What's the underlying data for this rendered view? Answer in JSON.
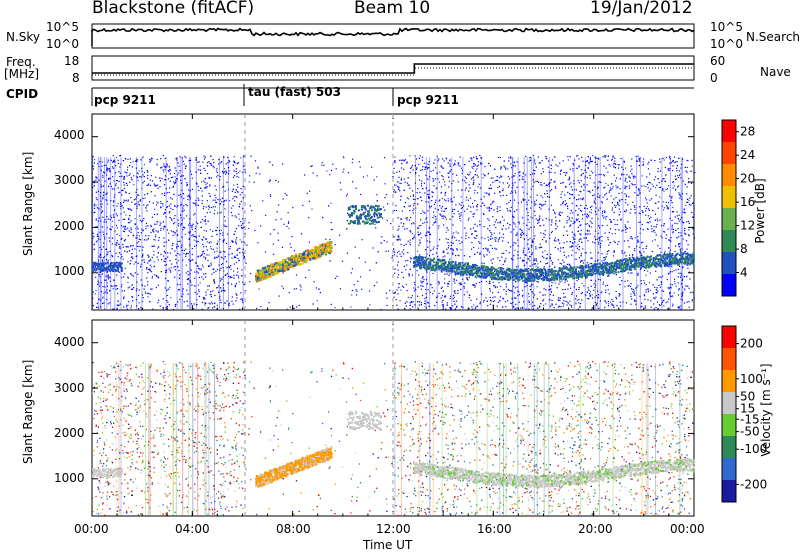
{
  "header": {
    "station": "Blackstone (fitACF)",
    "beam": "Beam 10",
    "date": "19/Jan/2012"
  },
  "noise_panel": {
    "left_label": "N.Sky",
    "left_ticks": [
      "10^5",
      "10^0"
    ],
    "right_ticks": [
      "10^5",
      "10^0"
    ],
    "right_label": "N.Search"
  },
  "freq_panel": {
    "left_label_1": "Freq.",
    "left_label_2": "[MHz]",
    "left_ticks": [
      "18",
      "8"
    ],
    "right_ticks": [
      "60",
      "0"
    ],
    "right_label": "Nave"
  },
  "cpid": {
    "label": "CPID",
    "segments": [
      {
        "name": "pcp 9211",
        "start_hour": 0,
        "end_hour": 6.1
      },
      {
        "name": "tau (fast) 503",
        "start_hour": 6.1,
        "end_hour": 12.0
      },
      {
        "name": "pcp 9211",
        "start_hour": 12.0,
        "end_hour": 24
      }
    ]
  },
  "chart_data": [
    {
      "type": "heatmap",
      "title": "",
      "ylabel": "Slant Range [km]",
      "xlabel": "",
      "xlim": [
        0,
        24
      ],
      "ylim": [
        180,
        4500
      ],
      "yticks": [
        "4000",
        "3000",
        "2000",
        "1000"
      ],
      "ytick_values": [
        4000,
        3000,
        2000,
        1000
      ],
      "colorbar": {
        "label": "Power [dB]",
        "ticks": [
          "28",
          "24",
          "20",
          "16",
          "12",
          "8",
          "4"
        ],
        "tick_values": [
          28,
          24,
          20,
          16,
          12,
          8,
          4
        ],
        "range": [
          0,
          30
        ],
        "colors": [
          "#0000ff",
          "#1f4fc0",
          "#2e8b57",
          "#6ab04c",
          "#f0c000",
          "#ff8c00",
          "#ff4500",
          "#ff0000"
        ]
      },
      "features": [
        {
          "name": "ground scatter band",
          "hours": [
            0,
            24
          ],
          "range_km": [
            950,
            1500
          ]
        },
        {
          "name": "strong echo",
          "hours": [
            6.5,
            9.5
          ],
          "range_km": [
            900,
            1600
          ]
        },
        {
          "name": "patch",
          "hours": [
            10.2,
            11.5
          ],
          "range_km": [
            2100,
            2500
          ]
        }
      ]
    },
    {
      "type": "heatmap",
      "title": "",
      "ylabel": "Slant Range [km]",
      "xlabel": "Time UT",
      "xlim": [
        0,
        24
      ],
      "ylim": [
        180,
        4500
      ],
      "yticks": [
        "4000",
        "3000",
        "2000",
        "1000"
      ],
      "ytick_values": [
        4000,
        3000,
        2000,
        1000
      ],
      "xticks": [
        "00:00",
        "04:00",
        "08:00",
        "12:00",
        "16:00",
        "20:00",
        "00:00"
      ],
      "xtick_values": [
        0,
        4,
        8,
        12,
        16,
        20,
        24
      ],
      "colorbar": {
        "label": "Velocity [m s⁻¹]",
        "ticks": [
          "200",
          "100",
          "50",
          "15",
          "-15",
          "-50",
          "-100",
          "-200"
        ],
        "tick_values": [
          200,
          100,
          50,
          15,
          -15,
          -50,
          -100,
          -200
        ],
        "range": [
          -250,
          250
        ],
        "colors": [
          "#1a1aa0",
          "#2e6ad0",
          "#2e8b57",
          "#66cc33",
          "#c8c8c8",
          "#ff9900",
          "#ff5500",
          "#ff0000"
        ]
      }
    }
  ]
}
